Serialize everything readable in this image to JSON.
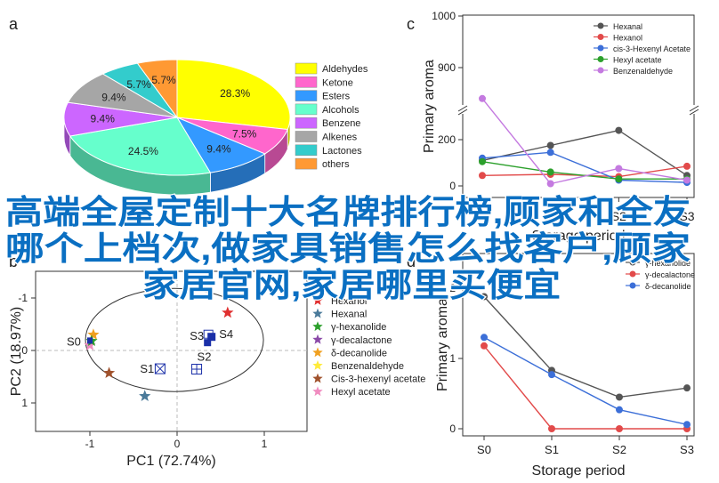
{
  "panel_labels": {
    "a": "a",
    "b": "b",
    "c": "c",
    "d": "d"
  },
  "overlay": {
    "line1": "高端全屋定制十大名牌排行榜,顾家和全友",
    "line2": "哪个上档次,做家具销售怎么找客户,顾家",
    "line3": "家居官网,家居哪里买便宜"
  },
  "colors": {
    "accent_overlay": "#0a6fc2"
  },
  "chart_data": [
    {
      "id": "a",
      "type": "pie",
      "categories": [
        "Aldehydes",
        "Ketone",
        "Esters",
        "Alcohols",
        "Benzene",
        "Alkenes",
        "Lactones",
        "others"
      ],
      "values": [
        28.3,
        7.5,
        9.4,
        24.5,
        9.4,
        9.4,
        5.7,
        5.7
      ],
      "slice_labels": [
        "28.3%",
        "7.5%",
        "9.4%",
        "24.5%",
        "9.4%",
        "9.4%",
        "5.7%",
        "5.7%"
      ],
      "colors": [
        "#ffff00",
        "#ff66cc",
        "#3399ff",
        "#66ffcc",
        "#cc66ff",
        "#a6a6a6",
        "#33cccc",
        "#ff9933"
      ],
      "legend_position": "right"
    },
    {
      "id": "b",
      "type": "scatter",
      "xlabel": "PC1 (72.74%)",
      "ylabel": "PC2 (18.97%)",
      "xlim": [
        -1.5,
        1.5
      ],
      "ylim": [
        -1.5,
        1.5
      ],
      "xticks": [
        "-1",
        "0",
        "1"
      ],
      "yticks": [
        "1",
        "0",
        "-1"
      ],
      "legend_position": "right",
      "legend": [
        {
          "name": "Hexanol",
          "color": "#e03030"
        },
        {
          "name": "Hexanal",
          "color": "#4a7a9a"
        },
        {
          "name": "γ-hexanolide",
          "color": "#2ca02c"
        },
        {
          "name": "γ-decalactone",
          "color": "#8b4aa8"
        },
        {
          "name": "δ-decanolide",
          "color": "#f0a020"
        },
        {
          "name": "Benzenaldehyde",
          "color": "#ffeb3b"
        },
        {
          "name": "Cis-3-hexenyl acetate",
          "color": "#a0522d"
        },
        {
          "name": "Hexyl acetate",
          "color": "#f08cc0"
        }
      ],
      "star_points": [
        {
          "x": 0.58,
          "y": -0.72,
          "color": "#e03030"
        },
        {
          "x": -0.37,
          "y": 0.87,
          "color": "#4a7a9a"
        },
        {
          "x": -0.78,
          "y": 0.43,
          "color": "#a0522d"
        },
        {
          "x": -0.96,
          "y": -0.3,
          "color": "#f0a020"
        },
        {
          "x": -1.0,
          "y": -0.1,
          "color": "#f08cc0"
        },
        {
          "x": -0.98,
          "y": -0.18,
          "color": "#2ca02c"
        }
      ],
      "samples": [
        {
          "label": "S0",
          "x": -1.0,
          "y": -0.18
        },
        {
          "label": "S1",
          "x": -0.2,
          "y": 0.34
        },
        {
          "label": "S2",
          "x": 0.22,
          "y": 0.28
        },
        {
          "label": "S3",
          "x": 0.4,
          "y": -0.42
        },
        {
          "label": "S4",
          "x": 0.4,
          "y": -0.2
        }
      ]
    },
    {
      "id": "c",
      "type": "line",
      "xlabel": "Storage period",
      "ylabel": "Primary aroma",
      "categories": [
        "S0",
        "S1",
        "S2",
        "S3"
      ],
      "yticks_lower": [
        "0",
        "200"
      ],
      "yticks_upper": [
        "900",
        "1000"
      ],
      "axis_break": [
        300,
        800
      ],
      "series": [
        {
          "name": "Hexanal",
          "color": "#555555",
          "values": [
            110,
            175,
            240,
            45
          ]
        },
        {
          "name": "Hexanol",
          "color": "#e24a4a",
          "values": [
            45,
            50,
            40,
            85
          ]
        },
        {
          "name": "cis-3-Hexenyl Acetate",
          "color": "#3c6fd8",
          "values": [
            120,
            145,
            25,
            15
          ]
        },
        {
          "name": "Hexyl acetate",
          "color": "#2ca02c",
          "values": [
            105,
            60,
            30,
            30
          ]
        },
        {
          "name": "Benzenaldehyde",
          "color": "#c47ae0",
          "values": [
            840,
            675,
            75,
            25
          ]
        }
      ]
    },
    {
      "id": "d",
      "type": "line",
      "xlabel": "Storage period",
      "ylabel": "Primary aroma",
      "categories": [
        "S0",
        "S1",
        "S2",
        "S3"
      ],
      "yticks": [
        "0",
        "1",
        "2"
      ],
      "series": [
        {
          "name": "γ-hexanolide",
          "color": "#555555",
          "values": [
            1.88,
            0.83,
            0.45,
            0.58
          ]
        },
        {
          "name": "γ-decalactone",
          "color": "#e24a4a",
          "values": [
            1.18,
            0.0,
            0.0,
            0.0
          ]
        },
        {
          "name": "δ-decanolide",
          "color": "#3c6fd8",
          "values": [
            1.3,
            0.77,
            0.27,
            0.06
          ]
        }
      ]
    }
  ]
}
